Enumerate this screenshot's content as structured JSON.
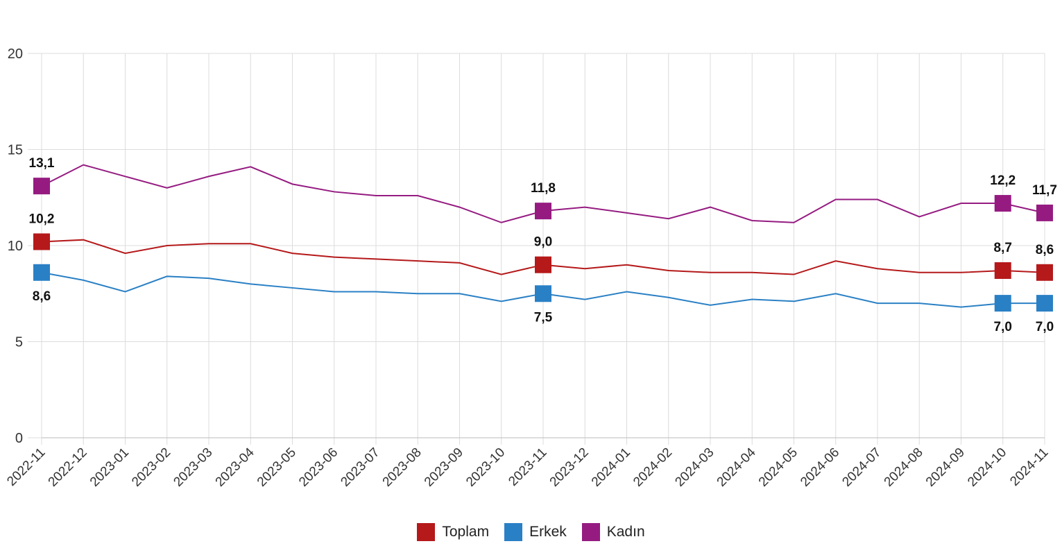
{
  "chart_data": {
    "type": "line",
    "title": "",
    "xlabel": "",
    "ylabel": "",
    "ylim": [
      0,
      20
    ],
    "yticks": [
      "0",
      "5",
      "10",
      "15",
      "20"
    ],
    "grid": true,
    "legend_position": "bottom-center",
    "categories": [
      "2022-11",
      "2022-12",
      "2023-01",
      "2023-02",
      "2023-03",
      "2023-04",
      "2023-05",
      "2023-06",
      "2023-07",
      "2023-08",
      "2023-09",
      "2023-10",
      "2023-11",
      "2023-12",
      "2024-01",
      "2024-02",
      "2024-03",
      "2024-04",
      "2024-05",
      "2024-06",
      "2024-07",
      "2024-08",
      "2024-09",
      "2024-10",
      "2024-11"
    ],
    "labeled_indices": [
      0,
      12,
      23,
      24
    ],
    "series": [
      {
        "name": "Toplam",
        "color": "#b5191a",
        "label_pos": "above",
        "values": [
          10.2,
          10.3,
          9.6,
          10.0,
          10.1,
          10.1,
          9.6,
          9.4,
          9.3,
          9.2,
          9.1,
          8.5,
          9.0,
          8.8,
          9.0,
          8.7,
          8.6,
          8.6,
          8.5,
          9.2,
          8.8,
          8.6,
          8.6,
          8.7,
          8.6
        ],
        "labels": [
          "10,2",
          "9,0",
          "8,7",
          "8,6"
        ]
      },
      {
        "name": "Erkek",
        "color": "#2a80c5",
        "label_pos": "below",
        "values": [
          8.6,
          8.2,
          7.6,
          8.4,
          8.3,
          8.0,
          7.8,
          7.6,
          7.6,
          7.5,
          7.5,
          7.1,
          7.5,
          7.2,
          7.6,
          7.3,
          6.9,
          7.2,
          7.1,
          7.5,
          7.0,
          7.0,
          6.8,
          7.0,
          7.0
        ],
        "labels": [
          "8,6",
          "7,5",
          "7,0",
          "7,0"
        ]
      },
      {
        "name": "Kadın",
        "color": "#951b81",
        "label_pos": "above",
        "values": [
          13.1,
          14.2,
          13.6,
          13.0,
          13.6,
          14.1,
          13.2,
          12.8,
          12.6,
          12.6,
          12.0,
          11.2,
          11.8,
          12.0,
          11.7,
          11.4,
          12.0,
          11.3,
          11.2,
          12.4,
          12.4,
          11.5,
          12.2,
          12.2,
          11.7
        ],
        "labels": [
          "13,1",
          "11,8",
          "12,2",
          "11,7"
        ]
      }
    ]
  }
}
